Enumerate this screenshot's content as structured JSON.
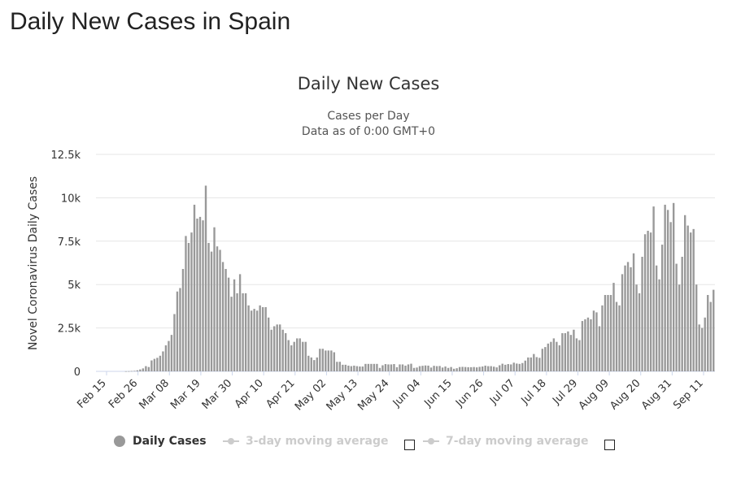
{
  "page": {
    "title": "Daily New Cases in Spain"
  },
  "chart_data": {
    "type": "bar",
    "title": "Daily New Cases",
    "subtitle_lines": [
      "Cases per Day",
      "Data as of 0:00 GMT+0"
    ],
    "ylabel": "Novel Coronavirus Daily Cases",
    "xlabel": "",
    "ylim": [
      0,
      12500
    ],
    "yticks": [
      0,
      2500,
      5000,
      7500,
      10000,
      12500
    ],
    "ytick_labels": [
      "0",
      "2.5k",
      "5k",
      "7.5k",
      "10k",
      "12.5k"
    ],
    "x_tick_labels": [
      "Feb 15",
      "Feb 26",
      "Mar 08",
      "Mar 19",
      "Mar 30",
      "Apr 10",
      "Apr 21",
      "May 02",
      "May 13",
      "May 24",
      "Jun 04",
      "Jun 15",
      "Jun 26",
      "Jul 07",
      "Jul 18",
      "Jul 29",
      "Aug 09",
      "Aug 20",
      "Aug 31",
      "Sep 11"
    ],
    "date_range": [
      "Feb 15",
      "Sep 11"
    ],
    "bar_color": "#999999",
    "grid": true,
    "series": [
      {
        "name": "Daily Cases",
        "values": [
          0,
          0,
          0,
          0,
          0,
          0,
          0,
          0,
          0,
          0,
          5,
          10,
          20,
          30,
          60,
          110,
          170,
          300,
          250,
          630,
          720,
          780,
          900,
          1150,
          1500,
          1750,
          2100,
          3300,
          4600,
          4800,
          5900,
          7800,
          7400,
          8000,
          9600,
          8800,
          8900,
          8700,
          10700,
          7400,
          6900,
          8300,
          7200,
          7000,
          6300,
          5900,
          5400,
          4300,
          5300,
          4500,
          5600,
          4500,
          4500,
          3800,
          3500,
          3600,
          3500,
          3800,
          3700,
          3700,
          3100,
          2400,
          2600,
          2700,
          2700,
          2400,
          2200,
          1800,
          1500,
          1700,
          1900,
          1900,
          1700,
          1700,
          900,
          800,
          650,
          800,
          1300,
          1300,
          1200,
          1200,
          1200,
          1100,
          550,
          550,
          380,
          380,
          330,
          300,
          330,
          300,
          280,
          280,
          430,
          430,
          430,
          430,
          430,
          200,
          350,
          420,
          400,
          400,
          420,
          240,
          400,
          400,
          330,
          400,
          440,
          200,
          220,
          300,
          320,
          340,
          330,
          220,
          320,
          300,
          310,
          220,
          280,
          200,
          250,
          150,
          180,
          250,
          260,
          250,
          240,
          240,
          250,
          230,
          260,
          280,
          330,
          300,
          300,
          270,
          230,
          350,
          440,
          380,
          420,
          400,
          500,
          450,
          430,
          480,
          620,
          800,
          800,
          1000,
          820,
          780,
          1300,
          1400,
          1600,
          1700,
          1900,
          1700,
          1500,
          2200,
          2200,
          2300,
          2100,
          2400,
          1900,
          1800,
          2900,
          3000,
          3100,
          3000,
          3500,
          3400,
          2600,
          3800,
          4400,
          4400,
          4400,
          5100,
          4000,
          3800,
          5600,
          6100,
          6300,
          6000,
          6800,
          5000,
          4500,
          6600,
          7900,
          8100,
          8000,
          9500,
          6100,
          5300,
          7300,
          9600,
          9300,
          8600,
          9700,
          6200,
          5000,
          6600,
          9000,
          8400,
          8000,
          8200,
          5000,
          2700,
          2500,
          3100,
          4400,
          4000,
          4700
        ]
      },
      {
        "name": "3-day moving average",
        "enabled": false
      },
      {
        "name": "7-day moving average",
        "enabled": false
      }
    ]
  },
  "legend": {
    "items": [
      {
        "label": "Daily Cases",
        "state": "on"
      },
      {
        "label": "3-day moving average",
        "state": "off"
      },
      {
        "label": "7-day moving average",
        "state": "off"
      }
    ]
  }
}
